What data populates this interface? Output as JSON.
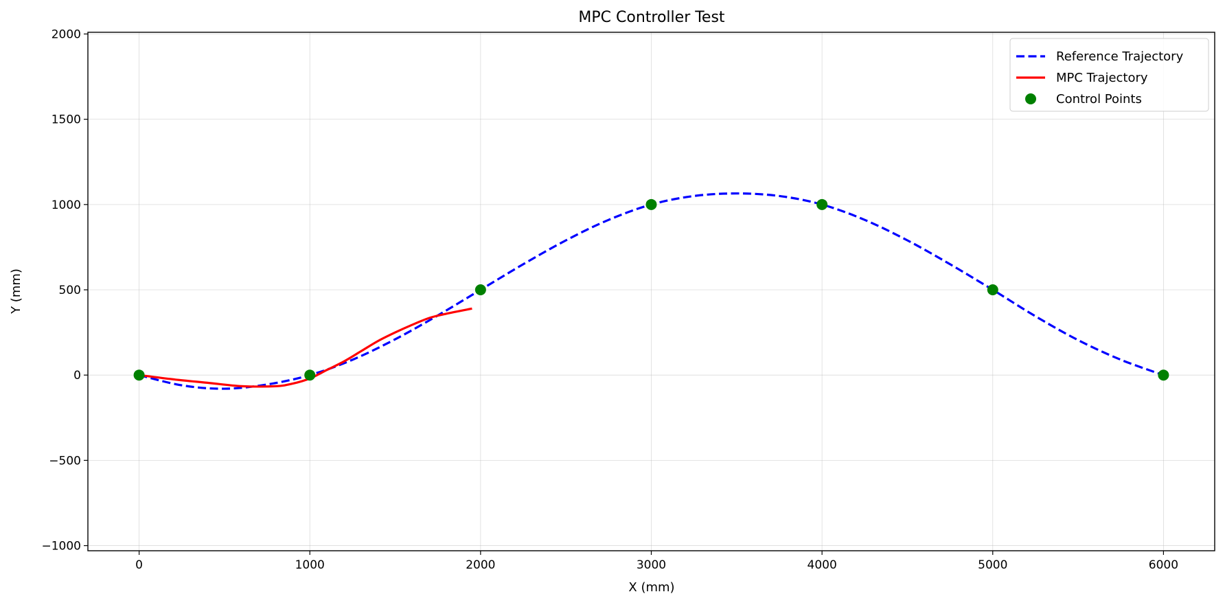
{
  "chart_data": {
    "type": "line",
    "title": "MPC Controller Test",
    "xlabel": "X (mm)",
    "ylabel": "Y (mm)",
    "xlim": [
      -300,
      6300
    ],
    "ylim": [
      -1030,
      2010
    ],
    "xticks": [
      0,
      1000,
      2000,
      3000,
      4000,
      5000,
      6000
    ],
    "xtick_labels": [
      "0",
      "1000",
      "2000",
      "3000",
      "4000",
      "5000",
      "6000"
    ],
    "yticks": [
      -1000,
      -500,
      0,
      500,
      1000,
      1500,
      2000
    ],
    "ytick_labels": [
      "−1000",
      "−500",
      "0",
      "500",
      "1000",
      "1500",
      "2000"
    ],
    "grid": true,
    "legend_position": "top-right",
    "series": [
      {
        "name": "Reference Trajectory",
        "style": "dashed",
        "color": "#0000ff",
        "points": [
          [
            0,
            0
          ],
          [
            250,
            -60
          ],
          [
            500,
            -80
          ],
          [
            750,
            -55
          ],
          [
            1000,
            0
          ],
          [
            1250,
            90
          ],
          [
            1500,
            210
          ],
          [
            1750,
            350
          ],
          [
            2000,
            500
          ],
          [
            2250,
            650
          ],
          [
            2500,
            790
          ],
          [
            2750,
            910
          ],
          [
            3000,
            1000
          ],
          [
            3250,
            1050
          ],
          [
            3500,
            1065
          ],
          [
            3750,
            1050
          ],
          [
            4000,
            1000
          ],
          [
            4250,
            910
          ],
          [
            4500,
            790
          ],
          [
            4750,
            650
          ],
          [
            5000,
            500
          ],
          [
            5250,
            345
          ],
          [
            5500,
            205
          ],
          [
            5750,
            90
          ],
          [
            6000,
            0
          ]
        ]
      },
      {
        "name": "MPC Trajectory",
        "style": "solid",
        "color": "#ff0000",
        "points": [
          [
            0,
            0
          ],
          [
            200,
            -25
          ],
          [
            400,
            -45
          ],
          [
            600,
            -65
          ],
          [
            800,
            -65
          ],
          [
            900,
            -50
          ],
          [
            1000,
            -20
          ],
          [
            1100,
            30
          ],
          [
            1200,
            80
          ],
          [
            1300,
            140
          ],
          [
            1400,
            200
          ],
          [
            1500,
            250
          ],
          [
            1600,
            295
          ],
          [
            1700,
            335
          ],
          [
            1800,
            360
          ],
          [
            1950,
            390
          ]
        ]
      },
      {
        "name": "Control Points",
        "style": "markers",
        "color": "#008000",
        "points": [
          [
            0,
            0
          ],
          [
            1000,
            0
          ],
          [
            2000,
            500
          ],
          [
            3000,
            1000
          ],
          [
            4000,
            1000
          ],
          [
            5000,
            500
          ],
          [
            6000,
            0
          ]
        ]
      }
    ]
  }
}
